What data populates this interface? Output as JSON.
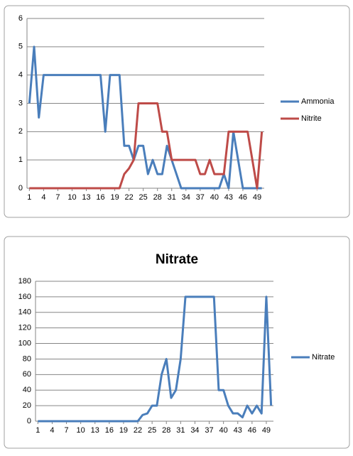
{
  "chart_data": [
    {
      "type": "line",
      "x": [
        1,
        2,
        3,
        4,
        5,
        6,
        7,
        8,
        9,
        10,
        11,
        12,
        13,
        14,
        15,
        16,
        17,
        18,
        19,
        20,
        21,
        22,
        23,
        24,
        25,
        26,
        27,
        28,
        29,
        30,
        31,
        32,
        33,
        34,
        35,
        36,
        37,
        38,
        39,
        40,
        41,
        42,
        43,
        44,
        45,
        46,
        47,
        48,
        49,
        50
      ],
      "xlim": [
        0.5,
        50.5
      ],
      "xticks": [
        1,
        4,
        7,
        10,
        13,
        16,
        19,
        22,
        25,
        28,
        31,
        34,
        37,
        40,
        43,
        46,
        49
      ],
      "ylim": [
        0,
        6
      ],
      "yticks": [
        0,
        1,
        2,
        3,
        4,
        5,
        6
      ],
      "grid": true,
      "legend": "right",
      "series": [
        {
          "name": "Ammonia",
          "color": "#4a7ebb",
          "values": [
            3,
            5,
            2.5,
            4,
            4,
            4,
            4,
            4,
            4,
            4,
            4,
            4,
            4,
            4,
            4,
            4,
            2,
            4,
            4,
            4,
            1.5,
            1.5,
            1,
            1.5,
            1.5,
            0.5,
            1,
            0.5,
            0.5,
            1.5,
            1,
            0.5,
            0,
            0,
            0,
            0,
            0,
            0,
            0,
            0,
            0,
            0.5,
            0,
            2,
            1,
            0,
            0,
            0,
            0,
            0
          ]
        },
        {
          "name": "Nitrite",
          "color": "#be4b48",
          "values": [
            0,
            0,
            0,
            0,
            0,
            0,
            0,
            0,
            0,
            0,
            0,
            0,
            0,
            0,
            0,
            0,
            0,
            0,
            0,
            0,
            0.5,
            0.7,
            1,
            3,
            3,
            3,
            3,
            3,
            2,
            2,
            1,
            1,
            1,
            1,
            1,
            1,
            0.5,
            0.5,
            1,
            0.5,
            0.5,
            0.5,
            2,
            2,
            2,
            2,
            2,
            1,
            0,
            2
          ]
        }
      ]
    },
    {
      "type": "line",
      "title": "Nitrate",
      "x": [
        1,
        2,
        3,
        4,
        5,
        6,
        7,
        8,
        9,
        10,
        11,
        12,
        13,
        14,
        15,
        16,
        17,
        18,
        19,
        20,
        21,
        22,
        23,
        24,
        25,
        26,
        27,
        28,
        29,
        30,
        31,
        32,
        33,
        34,
        35,
        36,
        37,
        38,
        39,
        40,
        41,
        42,
        43,
        44,
        45,
        46,
        47,
        48,
        49,
        50
      ],
      "xlim": [
        0.5,
        50.5
      ],
      "xticks": [
        1,
        4,
        7,
        10,
        13,
        16,
        19,
        22,
        25,
        28,
        31,
        34,
        37,
        40,
        43,
        46,
        49
      ],
      "ylim": [
        0,
        180
      ],
      "yticks": [
        0,
        20,
        40,
        60,
        80,
        100,
        120,
        140,
        160,
        180
      ],
      "grid": true,
      "legend": "right",
      "series": [
        {
          "name": "Nitrate",
          "color": "#4a7ebb",
          "values": [
            0,
            0,
            0,
            0,
            0,
            0,
            0,
            0,
            0,
            0,
            0,
            0,
            0,
            0,
            0,
            0,
            0,
            0,
            0,
            0,
            0,
            0,
            8,
            10,
            20,
            20,
            60,
            80,
            30,
            40,
            80,
            160,
            160,
            160,
            160,
            160,
            160,
            160,
            40,
            40,
            20,
            10,
            10,
            5,
            20,
            10,
            20,
            10,
            160,
            20
          ]
        }
      ]
    }
  ]
}
